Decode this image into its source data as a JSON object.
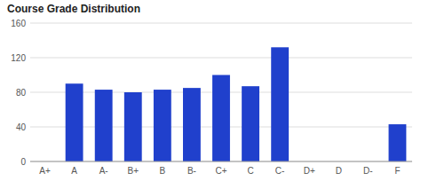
{
  "chart_data": {
    "type": "bar",
    "title": "Course Grade Distribution",
    "categories": [
      "A+",
      "A",
      "A-",
      "B+",
      "B",
      "B-",
      "C+",
      "C",
      "C-",
      "D+",
      "D",
      "D-",
      "F"
    ],
    "values": [
      0,
      90,
      83,
      80,
      83,
      85,
      100,
      87,
      132,
      0,
      0,
      0,
      43
    ],
    "color": "#2040cc",
    "ylim": [
      0,
      160
    ],
    "yticks": [
      0,
      40,
      80,
      120,
      160
    ],
    "grid": true
  }
}
